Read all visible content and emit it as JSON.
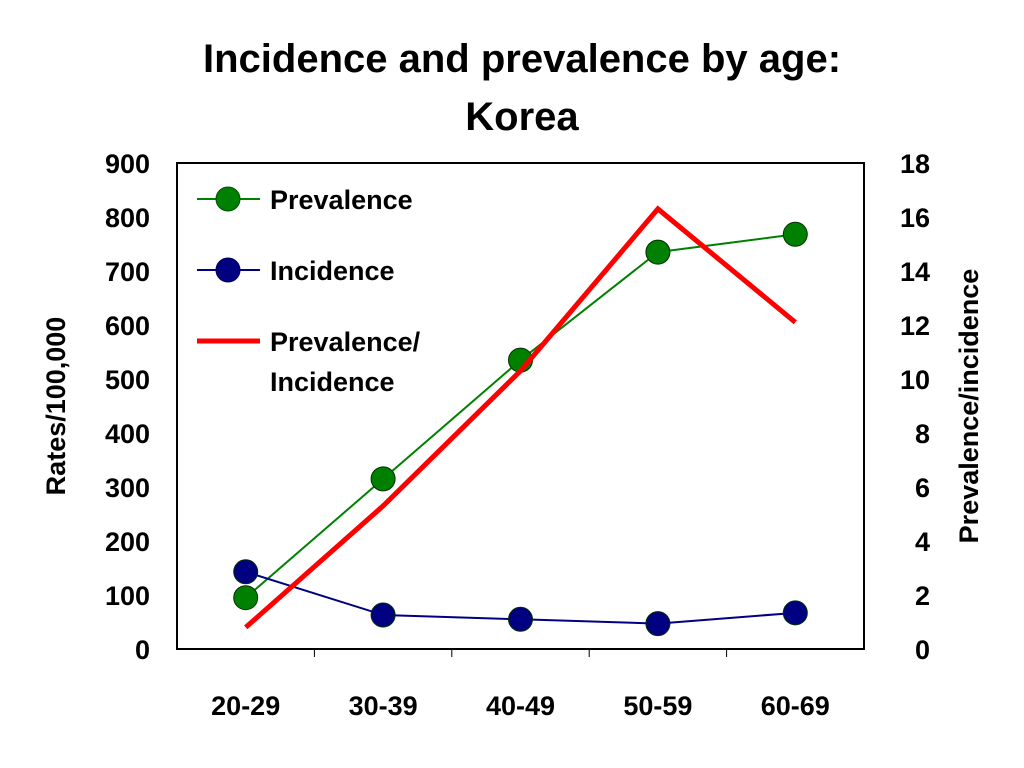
{
  "chart_data": {
    "type": "line",
    "title_lines": [
      "Incidence and prevalence by age:",
      "Korea"
    ],
    "categories": [
      "20-29",
      "30-39",
      "40-49",
      "50-59",
      "60-69"
    ],
    "ylabel": "Rates/100,000",
    "y2label": "Prevalence/incidence",
    "ylim": [
      0,
      900
    ],
    "y2lim": [
      0,
      18
    ],
    "yticks": [
      "0",
      "100",
      "200",
      "300",
      "400",
      "500",
      "600",
      "700",
      "800",
      "900"
    ],
    "y2ticks": [
      "0",
      "2",
      "4",
      "6",
      "8",
      "10",
      "12",
      "14",
      "16",
      "18"
    ],
    "series": [
      {
        "name": "Prevalence",
        "axis": "left",
        "color": "#008000",
        "marker": "circle",
        "values": [
          95,
          315,
          535,
          735,
          768
        ]
      },
      {
        "name": "Incidence",
        "axis": "left",
        "color": "#000080",
        "marker": "circle",
        "values": [
          143,
          63,
          55,
          47,
          67
        ]
      },
      {
        "name": "Prevalence/ Incidence",
        "name_lines": [
          "Prevalence/",
          "Incidence"
        ],
        "axis": "right",
        "color": "#ff0000",
        "marker": "none",
        "values": [
          0.8,
          5.3,
          10.3,
          16.3,
          12.1
        ]
      }
    ],
    "legend_position": "top-left inside",
    "grid": false
  }
}
